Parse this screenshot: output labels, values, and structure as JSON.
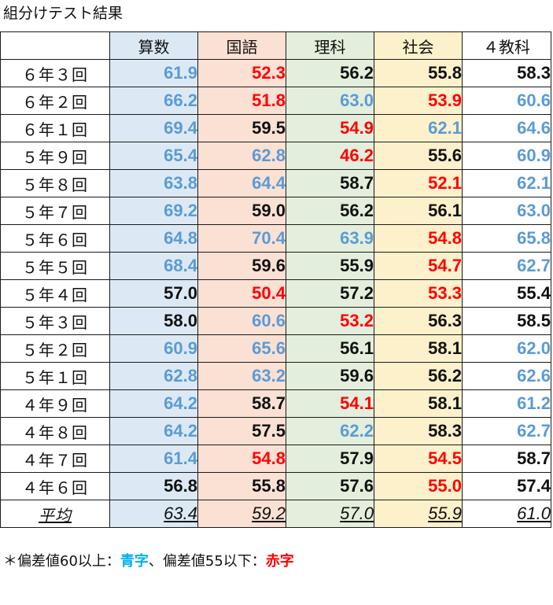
{
  "title": "組分けテスト結果",
  "subjects": [
    "算数",
    "国語",
    "理科",
    "社会",
    "４教科"
  ],
  "colors": {
    "blue": "#5b9bd5",
    "red": "#ff0000",
    "black": "#111111",
    "col_bg": [
      "#dce9f5",
      "#fbe0d4",
      "#e3eedc",
      "#fdf1cc",
      "#ffffff"
    ]
  },
  "rows": [
    {
      "label": "６年３回",
      "values": [
        "61.9",
        "52.3",
        "56.2",
        "55.8",
        "58.3"
      ],
      "colors": [
        "blue",
        "red",
        "black",
        "black",
        "black"
      ]
    },
    {
      "label": "６年２回",
      "values": [
        "66.2",
        "51.8",
        "63.0",
        "53.9",
        "60.6"
      ],
      "colors": [
        "blue",
        "red",
        "blue",
        "red",
        "blue"
      ]
    },
    {
      "label": "６年１回",
      "values": [
        "69.4",
        "59.5",
        "54.9",
        "62.1",
        "64.6"
      ],
      "colors": [
        "blue",
        "black",
        "red",
        "blue",
        "blue"
      ]
    },
    {
      "label": "５年９回",
      "values": [
        "65.4",
        "62.8",
        "46.2",
        "55.6",
        "60.9"
      ],
      "colors": [
        "blue",
        "blue",
        "red",
        "black",
        "blue"
      ]
    },
    {
      "label": "５年８回",
      "values": [
        "63.8",
        "64.4",
        "58.7",
        "52.1",
        "62.1"
      ],
      "colors": [
        "blue",
        "blue",
        "black",
        "red",
        "blue"
      ]
    },
    {
      "label": "５年７回",
      "values": [
        "69.2",
        "59.0",
        "56.2",
        "56.1",
        "63.0"
      ],
      "colors": [
        "blue",
        "black",
        "black",
        "black",
        "blue"
      ]
    },
    {
      "label": "５年６回",
      "values": [
        "64.8",
        "70.4",
        "63.9",
        "54.8",
        "65.8"
      ],
      "colors": [
        "blue",
        "blue",
        "blue",
        "red",
        "blue"
      ]
    },
    {
      "label": "５年５回",
      "values": [
        "68.4",
        "59.6",
        "55.9",
        "54.7",
        "62.7"
      ],
      "colors": [
        "blue",
        "black",
        "black",
        "red",
        "blue"
      ]
    },
    {
      "label": "５年４回",
      "values": [
        "57.0",
        "50.4",
        "57.2",
        "53.3",
        "55.4"
      ],
      "colors": [
        "black",
        "red",
        "black",
        "red",
        "black"
      ]
    },
    {
      "label": "５年３回",
      "values": [
        "58.0",
        "60.6",
        "53.2",
        "56.3",
        "58.5"
      ],
      "colors": [
        "black",
        "blue",
        "red",
        "black",
        "black"
      ]
    },
    {
      "label": "５年２回",
      "values": [
        "60.9",
        "65.6",
        "56.1",
        "58.1",
        "62.0"
      ],
      "colors": [
        "blue",
        "blue",
        "black",
        "black",
        "blue"
      ]
    },
    {
      "label": "５年１回",
      "values": [
        "62.8",
        "63.2",
        "59.6",
        "56.2",
        "62.6"
      ],
      "colors": [
        "blue",
        "blue",
        "black",
        "black",
        "blue"
      ]
    },
    {
      "label": "４年９回",
      "values": [
        "64.2",
        "58.7",
        "54.1",
        "58.1",
        "61.2"
      ],
      "colors": [
        "blue",
        "black",
        "red",
        "black",
        "blue"
      ]
    },
    {
      "label": "４年８回",
      "values": [
        "64.2",
        "57.5",
        "62.2",
        "58.3",
        "62.7"
      ],
      "colors": [
        "blue",
        "black",
        "blue",
        "black",
        "blue"
      ]
    },
    {
      "label": "４年７回",
      "values": [
        "61.4",
        "54.8",
        "57.9",
        "54.5",
        "58.7"
      ],
      "colors": [
        "blue",
        "red",
        "black",
        "red",
        "black"
      ]
    },
    {
      "label": "４年６回",
      "values": [
        "56.8",
        "55.8",
        "57.6",
        "55.0",
        "57.4"
      ],
      "colors": [
        "black",
        "black",
        "black",
        "red",
        "black"
      ]
    }
  ],
  "average": {
    "label": "平均",
    "values": [
      "63.4",
      "59.2",
      "57.0",
      "55.9",
      "61.0"
    ]
  },
  "note": {
    "prefix": "＊偏差値60以上：",
    "blue_text": "青字",
    "middle": "、偏差値55以下：",
    "red_text": "赤字"
  }
}
